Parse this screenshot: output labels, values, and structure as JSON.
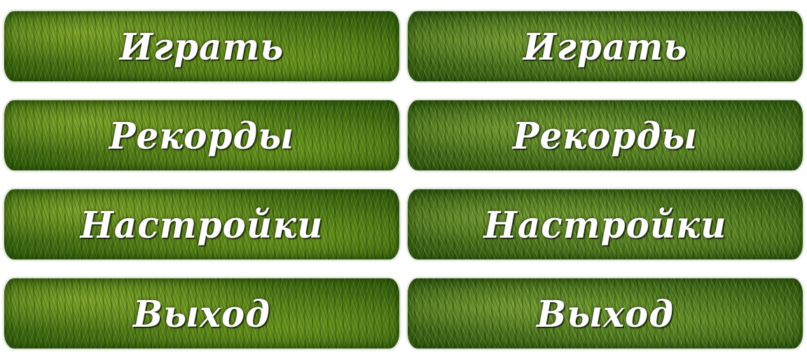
{
  "menu_normal": {
    "buttons": [
      {
        "label": "Играть"
      },
      {
        "label": "Рекорды"
      },
      {
        "label": "Настройки"
      },
      {
        "label": "Выход"
      }
    ]
  },
  "menu_hover": {
    "buttons": [
      {
        "label": "Играть"
      },
      {
        "label": "Рекорды"
      },
      {
        "label": "Настройки"
      },
      {
        "label": "Выход"
      }
    ]
  },
  "colors": {
    "grass_base": "#4a7516",
    "grass_light": "#9ccb3c",
    "grass_dark": "#2f5a0c",
    "label_text": "#ffffff"
  }
}
